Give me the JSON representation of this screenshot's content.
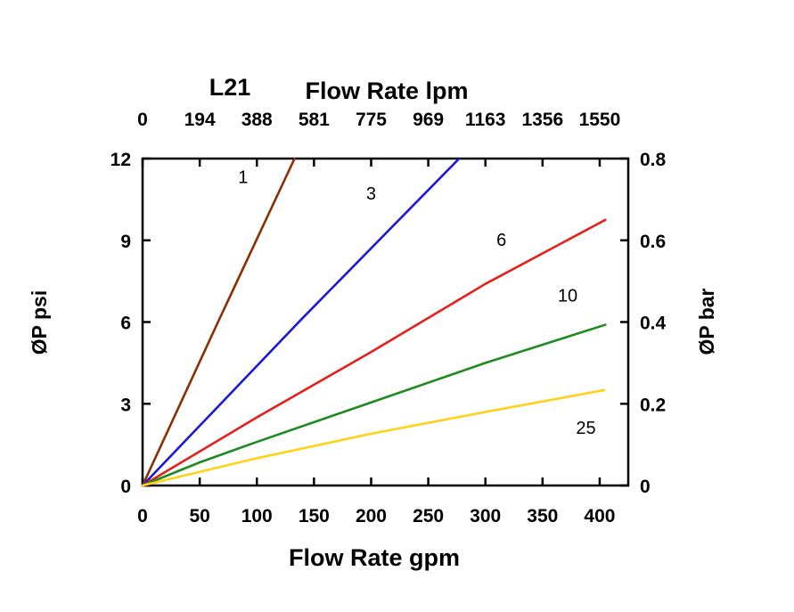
{
  "title": {
    "model": "L21",
    "top_axis": "Flow Rate lpm"
  },
  "axes": {
    "left_label": "ØP psi",
    "right_label": "ØP bar",
    "bottom_label": "Flow Rate gpm"
  },
  "chart_data": {
    "type": "line",
    "title": "L21 Flow Rate lpm",
    "grid": false,
    "legend": "inline-curve-labels",
    "x_bottom": {
      "label": "Flow Rate gpm",
      "ticks": [
        0,
        50,
        100,
        150,
        200,
        250,
        300,
        350,
        400
      ],
      "range": [
        0,
        425
      ]
    },
    "x_top": {
      "label": "Flow Rate lpm",
      "tick_labels": [
        "0",
        "194",
        "388",
        "581",
        "775",
        "969",
        "1163",
        "1356",
        "1550"
      ]
    },
    "y_left": {
      "label": "ØP psi",
      "ticks": [
        0,
        3,
        6,
        9,
        12
      ],
      "range": [
        0,
        12
      ]
    },
    "y_right": {
      "label": "ØP bar",
      "ticks": [
        0,
        0.2,
        0.4,
        0.6,
        0.8
      ],
      "tick_labels": [
        "0",
        "0.2",
        "0.4",
        "0.6",
        "0.8"
      ],
      "range": [
        0,
        0.8
      ]
    },
    "series": [
      {
        "name": "1",
        "color": "#8C2D04",
        "points": [
          [
            0,
            0
          ],
          [
            66,
            6.0
          ],
          [
            133,
            12
          ]
        ],
        "label_at": [
          88,
          11.1
        ]
      },
      {
        "name": "3",
        "color": "#1A1AD6",
        "points": [
          [
            0,
            0
          ],
          [
            139,
            6.1
          ],
          [
            277,
            12
          ]
        ],
        "label_at": [
          200,
          10.5
        ]
      },
      {
        "name": "6",
        "color": "#E32119",
        "points": [
          [
            0,
            0
          ],
          [
            100,
            2.5
          ],
          [
            200,
            4.9
          ],
          [
            300,
            7.4
          ],
          [
            405,
            9.75
          ]
        ],
        "label_at": [
          314,
          8.8
        ]
      },
      {
        "name": "10",
        "color": "#1F8A1F",
        "points": [
          [
            0,
            0
          ],
          [
            50,
            0.85
          ],
          [
            100,
            1.6
          ],
          [
            200,
            3.05
          ],
          [
            300,
            4.5
          ],
          [
            405,
            5.9
          ]
        ],
        "label_at": [
          372,
          6.75
        ]
      },
      {
        "name": "25",
        "color": "#FFD118",
        "points": [
          [
            0,
            0
          ],
          [
            100,
            1.0
          ],
          [
            150,
            1.45
          ],
          [
            200,
            1.9
          ],
          [
            300,
            2.7
          ],
          [
            404,
            3.5
          ]
        ],
        "label_at": [
          388,
          1.9
        ]
      }
    ]
  }
}
